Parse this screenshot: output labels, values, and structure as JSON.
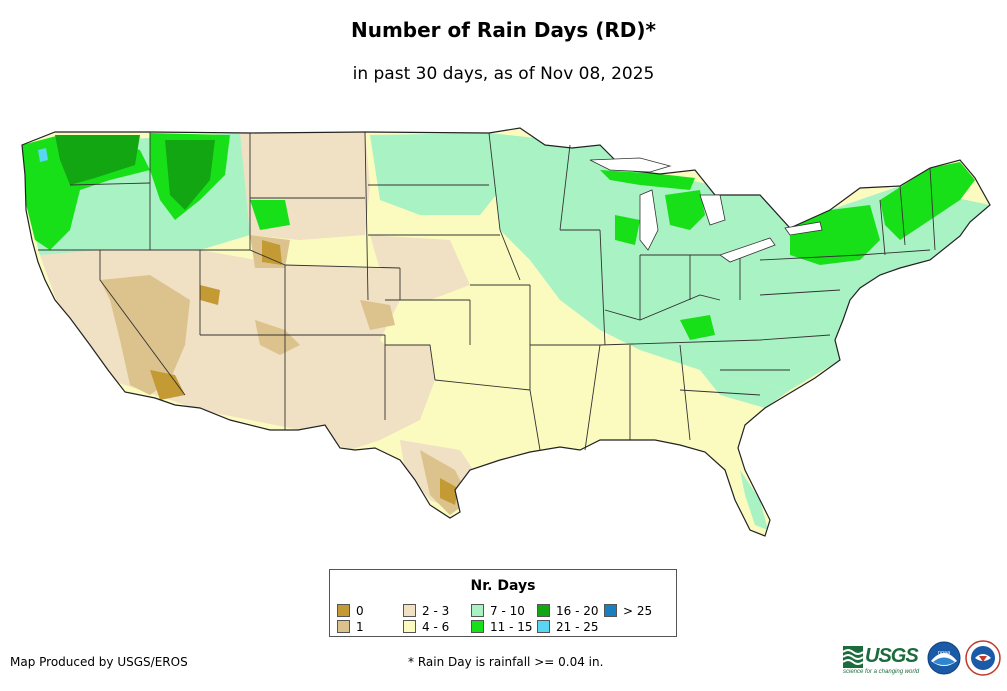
{
  "title": "Number of Rain Days (RD)*",
  "subtitle": "in past 30 days, as of Nov 08, 2025",
  "legend": {
    "title": "Nr. Days",
    "items": [
      {
        "label": "0",
        "color": "#c39a33"
      },
      {
        "label": "1",
        "color": "#dcc38e"
      },
      {
        "label": "2 - 3",
        "color": "#f0e0c4"
      },
      {
        "label": "4 - 6",
        "color": "#fbfbc0"
      },
      {
        "label": "7 - 10",
        "color": "#a8f2c4"
      },
      {
        "label": "11 - 15",
        "color": "#18e018"
      },
      {
        "label": "16 - 20",
        "color": "#12a612"
      },
      {
        "label": "21 - 25",
        "color": "#5bd6f2"
      },
      {
        "label": "> 25",
        "color": "#1a7fc0"
      }
    ]
  },
  "footer": {
    "credit": "Map Produced by USGS/EROS",
    "note": "* Rain Day is rainfall >= 0.04 in."
  },
  "logos": {
    "usgs": "USGS",
    "usgs_tagline": "science for a changing world",
    "noaa_icon": "noaa-logo-icon",
    "nws_icon": "national-weather-service-logo-icon"
  }
}
